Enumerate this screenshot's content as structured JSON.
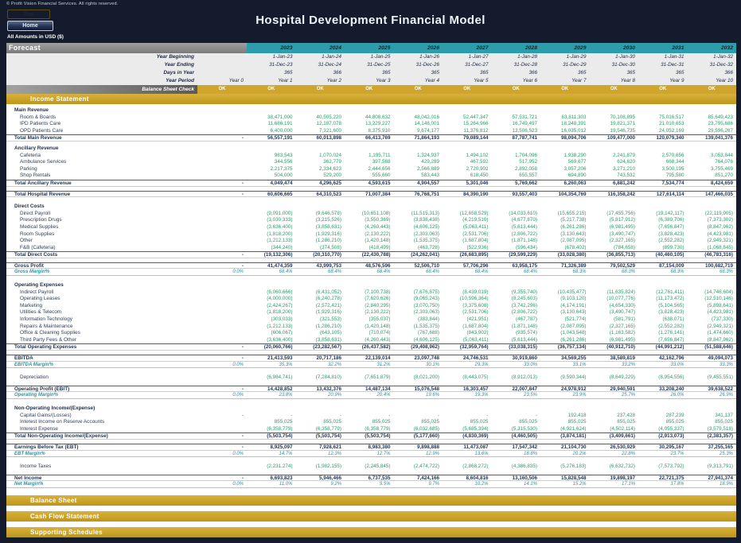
{
  "header": {
    "copyright": "© Profit Vision Financial Services. All rights reserved.",
    "title": "Hospital Development Financial Model",
    "top_button": "Top",
    "home_button": "Home",
    "amounts_note": "All Amounts in  USD ($)"
  },
  "forecast": {
    "label": "Forecast",
    "years": [
      "2023",
      "2024",
      "2025",
      "2026",
      "2027",
      "2028",
      "2029",
      "2030",
      "2031",
      "2032"
    ],
    "rows": [
      {
        "label": "Year Beginning",
        "y0": "",
        "v": [
          "1-Jan-23",
          "1-Jan-24",
          "1-Jan-25",
          "1-Jan-26",
          "1-Jan-27",
          "1-Jan-28",
          "1-Jan-29",
          "1-Jan-30",
          "1-Jan-31",
          "1-Jan-32"
        ]
      },
      {
        "label": "Year Ending",
        "y0": "",
        "v": [
          "31-Dec-23",
          "31-Dec-24",
          "31-Dec-25",
          "31-Dec-26",
          "31-Dec-27",
          "31-Dec-28",
          "31-Dec-29",
          "31-Dec-30",
          "31-Dec-31",
          "31-Dec-32"
        ]
      },
      {
        "label": "Days in Year",
        "y0": "",
        "v": [
          "365",
          "366",
          "365",
          "365",
          "365",
          "366",
          "365",
          "365",
          "365",
          "366"
        ]
      },
      {
        "label": "Year Period",
        "y0": "Year 0",
        "v": [
          "Year 1",
          "Year 2",
          "Year 3",
          "Year 4",
          "Year 5",
          "Year 6",
          "Year 7",
          "Year 8",
          "Year 9",
          "Year 10"
        ]
      }
    ],
    "check": {
      "label": "Balance Sheet Check",
      "values": [
        "OK",
        "OK",
        "OK",
        "OK",
        "OK",
        "OK",
        "OK",
        "OK",
        "OK",
        "OK",
        "OK"
      ]
    }
  },
  "sections": {
    "income_statement": "Income Statement",
    "balance_sheet": "Balance Sheet",
    "cash_flow": "Cash Flow Statement",
    "supporting": "Supporting Schedules"
  },
  "income_statement": {
    "rows": [
      {
        "t": "sp",
        "h": 4
      },
      {
        "t": "sec",
        "label": "Main Revenue"
      },
      {
        "t": "det",
        "label": "Room & Boards",
        "y0": "",
        "v": [
          "38,471,000",
          "40,505,220",
          "44,808,632",
          "48,042,016",
          "52,447,347",
          "57,531,721",
          "63,811,303",
          "70,108,895",
          "75,016,517",
          "85,649,423"
        ]
      },
      {
        "t": "det",
        "label": "IPD Patients Care",
        "y0": "",
        "v": [
          "11,686,191",
          "12,187,078",
          "13,229,227",
          "14,148,001",
          "15,264,966",
          "16,749,497",
          "18,248,391",
          "19,821,371",
          "21,010,653",
          "23,795,686"
        ]
      },
      {
        "t": "det",
        "label": "OPD Patients Care",
        "y0": "",
        "v": [
          "6,400,000",
          "7,321,600",
          "8,375,910",
          "9,674,177",
          "11,376,812",
          "13,506,523",
          "16,035,012",
          "19,546,735",
          "24,052,169",
          "29,596,267"
        ]
      },
      {
        "t": "tot",
        "label": "Total Main Revenue",
        "y0": "-",
        "v": [
          "56,557,191",
          "60,013,898",
          "66,413,769",
          "71,864,193",
          "79,089,144",
          "87,787,741",
          "98,094,706",
          "109,477,000",
          "120,079,340",
          "139,041,376"
        ]
      },
      {
        "t": "sp",
        "h": 5
      },
      {
        "t": "sec",
        "label": "Ancillary Revenue"
      },
      {
        "t": "det",
        "label": "Cafeteria",
        "y0": "",
        "v": [
          "983,543",
          "1,070,024",
          "1,195,711",
          "1,324,937",
          "1,494,102",
          "1,704,096",
          "1,938,290",
          "2,241,879",
          "2,570,656",
          "3,053,844"
        ]
      },
      {
        "t": "det",
        "label": "Ambulance Services",
        "y0": "",
        "v": [
          "344,556",
          "362,779",
          "397,588",
          "429,289",
          "467,592",
          "517,952",
          "569,677",
          "624,620",
          "668,344",
          "764,076"
        ]
      },
      {
        "t": "det",
        "label": "Parking",
        "y0": "",
        "v": [
          "2,217,375",
          "2,334,623",
          "2,444,656",
          "2,566,889",
          "2,720,902",
          "2,892,058",
          "3,057,206",
          "3,271,210",
          "3,500,195",
          "3,755,469"
        ]
      },
      {
        "t": "det",
        "label": "Shop Rentals",
        "y0": "",
        "v": [
          "504,000",
          "529,200",
          "555,660",
          "583,443",
          "618,450",
          "655,557",
          "694,890",
          "743,532",
          "795,580",
          "851,270"
        ]
      },
      {
        "t": "tot",
        "label": "Total Ancillary Revenue",
        "y0": "-",
        "v": [
          "4,049,474",
          "4,296,625",
          "4,593,615",
          "4,904,557",
          "5,301,046",
          "5,769,662",
          "6,260,063",
          "6,881,242",
          "7,534,774",
          "8,424,659"
        ]
      },
      {
        "t": "sp",
        "h": 5
      },
      {
        "t": "tot",
        "label": "Total Hospital Revenue",
        "y0": "-",
        "v": [
          "60,606,665",
          "64,310,523",
          "71,007,384",
          "76,768,751",
          "84,390,190",
          "93,557,403",
          "104,354,769",
          "116,358,242",
          "127,614,114",
          "147,466,035"
        ]
      },
      {
        "t": "sp",
        "h": 8
      },
      {
        "t": "sec",
        "label": "Direct Costs"
      },
      {
        "t": "det",
        "label": "Direct Payroll",
        "y0": "",
        "v": [
          "(9,091,000)",
          "(9,646,578)",
          "(10,651,108)",
          "(11,515,313)",
          "(12,658,529)",
          "(14,033,610)",
          "(15,655,215)",
          "(17,455,756)",
          "(19,142,117)",
          "(22,119,905)"
        ]
      },
      {
        "t": "det",
        "label": "Prescription Drugs",
        "y0": "",
        "v": [
          "(3,030,333)",
          "(3,215,526)",
          "(3,550,369)",
          "(3,838,438)",
          "(4,219,510)",
          "(4,677,870)",
          "(5,217,738)",
          "(5,817,912)",
          "(6,380,706)",
          "(7,373,302)"
        ]
      },
      {
        "t": "det",
        "label": "Medical Supplies",
        "y0": "",
        "v": [
          "(3,636,400)",
          "(3,858,631)",
          "(4,260,443)",
          "(4,606,125)",
          "(5,063,411)",
          "(5,613,444)",
          "(6,261,286)",
          "(6,981,495)",
          "(7,656,847)",
          "(8,847,962)"
        ]
      },
      {
        "t": "det",
        "label": "Room Supplies",
        "y0": "",
        "v": [
          "(1,818,200)",
          "(1,929,316)",
          "(2,130,222)",
          "(2,303,063)",
          "(2,531,706)",
          "(2,806,722)",
          "(3,130,643)",
          "(3,490,747)",
          "(3,828,423)",
          "(4,423,981)"
        ]
      },
      {
        "t": "det",
        "label": "Other",
        "y0": "",
        "v": [
          "(1,212,133)",
          "(1,286,210)",
          "(1,420,148)",
          "(1,535,375)",
          "(1,687,804)",
          "(1,871,148)",
          "(2,087,095)",
          "(2,327,165)",
          "(2,552,282)",
          "(2,949,321)"
        ]
      },
      {
        "t": "det",
        "label": "F&B (Cafeteria)",
        "y0": "",
        "v": [
          "(344,240)",
          "(374,508)",
          "(418,499)",
          "(463,728)",
          "(522,936)",
          "(596,434)",
          "(678,402)",
          "(784,658)",
          "(899,730)",
          "(1,068,845)"
        ]
      },
      {
        "t": "tot",
        "label": "Total Direct Costs",
        "y0": "-",
        "v": [
          "(19,132,306)",
          "(20,310,770)",
          "(22,430,788)",
          "(24,262,041)",
          "(26,683,895)",
          "(29,599,229)",
          "(33,028,380)",
          "(36,855,713)",
          "(40,460,105)",
          "(46,783,316)"
        ]
      },
      {
        "t": "sp",
        "h": 5
      },
      {
        "t": "tot",
        "label": "Gross Profit",
        "y0": "-",
        "v": [
          "41,474,359",
          "43,999,753",
          "48,576,596",
          "52,506,710",
          "57,706,296",
          "63,958,175",
          "71,326,389",
          "79,502,529",
          "87,154,009",
          "100,682,719"
        ]
      },
      {
        "t": "mar",
        "label": "Gross Margin%",
        "y0": "0.0%",
        "v": [
          "68.4%",
          "68.4%",
          "68.4%",
          "68.4%",
          "68.4%",
          "68.4%",
          "68.3%",
          "68.3%",
          "68.3%",
          "68.3%"
        ]
      },
      {
        "t": "sp",
        "h": 8
      },
      {
        "t": "sec",
        "label": "Operating Expenses"
      },
      {
        "t": "det",
        "label": "Indirect Payroll",
        "y0": "",
        "v": [
          "(6,060,666)",
          "(6,431,052)",
          "(7,100,738)",
          "(7,676,875)",
          "(8,439,019)",
          "(9,355,740)",
          "(10,435,477)",
          "(11,635,824)",
          "(12,761,411)",
          "(14,746,604)"
        ]
      },
      {
        "t": "det",
        "label": "Operating Leases",
        "y0": "",
        "v": [
          "(4,000,000)",
          "(6,240,278)",
          "(7,620,626)",
          "(9,065,243)",
          "(10,596,364)",
          "(8,245,603)",
          "(9,103,120)",
          "(10,077,776)",
          "(11,173,472)",
          "(12,510,146)"
        ]
      },
      {
        "t": "det",
        "label": "Marketing",
        "y0": "",
        "v": [
          "(2,424,267)",
          "(2,572,421)",
          "(2,840,295)",
          "(3,070,750)",
          "(3,375,608)",
          "(3,742,296)",
          "(4,174,191)",
          "(4,654,330)",
          "(5,104,565)",
          "(5,898,641)"
        ]
      },
      {
        "t": "det",
        "label": "Utilities & Telecom",
        "y0": "",
        "v": [
          "(1,818,200)",
          "(1,929,316)",
          "(2,130,222)",
          "(2,303,063)",
          "(2,531,706)",
          "(2,806,722)",
          "(3,130,643)",
          "(3,490,747)",
          "(3,828,423)",
          "(4,423,981)"
        ]
      },
      {
        "t": "det",
        "label": "Information Technology",
        "y0": "",
        "v": [
          "(303,033)",
          "(321,553)",
          "(355,037)",
          "(383,844)",
          "(421,951)",
          "(467,787)",
          "(521,774)",
          "(581,791)",
          "(638,071)",
          "(737,330)"
        ]
      },
      {
        "t": "det",
        "label": "Repairs & Maintenance",
        "y0": "",
        "v": [
          "(1,212,133)",
          "(1,286,210)",
          "(1,420,148)",
          "(1,535,375)",
          "(1,687,804)",
          "(1,871,148)",
          "(2,087,095)",
          "(2,327,165)",
          "(2,552,282)",
          "(2,949,321)"
        ]
      },
      {
        "t": "det",
        "label": "Office & Cleaning Supplies",
        "y0": "",
        "v": [
          "(606,067)",
          "(643,105)",
          "(710,074)",
          "(767,688)",
          "(843,902)",
          "(935,574)",
          "(1,043,548)",
          "(1,163,582)",
          "(1,276,141)",
          "(1,474,660)"
        ]
      },
      {
        "t": "det",
        "label": "Third Party Fees & Other",
        "y0": "",
        "v": [
          "(3,636,400)",
          "(3,858,631)",
          "(4,260,443)",
          "(4,606,125)",
          "(5,063,411)",
          "(5,613,444)",
          "(6,261,286)",
          "(6,981,495)",
          "(7,656,847)",
          "(8,847,962)"
        ]
      },
      {
        "t": "tot",
        "label": "Total Operating Expenses",
        "y0": "-",
        "v": [
          "(20,060,766)",
          "(23,282,567)",
          "(26,437,582)",
          "(29,408,962)",
          "(32,959,764)",
          "(33,038,315)",
          "(36,757,134)",
          "(40,912,710)",
          "(44,991,212)",
          "(51,588,646)"
        ]
      },
      {
        "t": "sp",
        "h": 5
      },
      {
        "t": "tot",
        "label": "EBITDA",
        "y0": "-",
        "v": [
          "21,413,593",
          "20,717,186",
          "22,139,014",
          "23,097,748",
          "24,746,531",
          "30,919,860",
          "34,569,255",
          "38,589,819",
          "42,162,796",
          "49,094,073"
        ]
      },
      {
        "t": "mar",
        "label": "EBITDA Margin%",
        "y0": "0.0%",
        "v": [
          "35.3%",
          "32.2%",
          "31.2%",
          "30.1%",
          "29.3%",
          "33.0%",
          "33.1%",
          "33.2%",
          "33.0%",
          "33.3%"
        ]
      },
      {
        "t": "sp",
        "h": 8
      },
      {
        "t": "det",
        "label": "Depreciation",
        "y0": "",
        "v": [
          "(6,984,741)",
          "(7,284,810)",
          "(7,651,879)",
          "(8,021,200)",
          "(8,443,075)",
          "(8,912,013)",
          "(9,590,344)",
          "(8,649,229)",
          "(8,954,556)",
          "(9,455,551)"
        ]
      },
      {
        "t": "sp",
        "h": 5
      },
      {
        "t": "tot",
        "label": "Operating Profit (EBIT)",
        "y0": "-",
        "v": [
          "14,428,852",
          "13,432,376",
          "14,487,134",
          "15,076,548",
          "16,303,457",
          "22,007,847",
          "24,978,912",
          "29,940,591",
          "33,208,240",
          "39,638,522"
        ]
      },
      {
        "t": "mar",
        "label": "Operating Margin%",
        "y0": "0.0%",
        "v": [
          "23.8%",
          "20.9%",
          "20.4%",
          "19.6%",
          "19.3%",
          "23.5%",
          "23.9%",
          "25.7%",
          "26.0%",
          "26.9%"
        ]
      },
      {
        "t": "sp",
        "h": 8
      },
      {
        "t": "sec",
        "label": "Non-Operating Income/(Expense)"
      },
      {
        "t": "det",
        "label": "Capital Gains/(Losses)",
        "y0": "-",
        "v": [
          "-",
          "-",
          "-",
          "-",
          "-",
          "-",
          "192,418",
          "237,428",
          "287,239",
          "341,137"
        ]
      },
      {
        "t": "det",
        "label": "Interest Income on Reserve Accounts",
        "y0": "",
        "v": [
          "855,025",
          "855,025",
          "855,025",
          "855,025",
          "855,025",
          "855,025",
          "855,025",
          "855,025",
          "855,025",
          "855,025"
        ]
      },
      {
        "t": "det",
        "label": "Interest Expense",
        "y0": "",
        "v": [
          "(6,358,779)",
          "(6,358,779)",
          "(6,358,779)",
          "(6,032,685)",
          "(5,685,394)",
          "(5,315,530)",
          "(4,921,624)",
          "(4,502,114)",
          "(4,055,337)",
          "(3,579,518)"
        ]
      },
      {
        "t": "tot",
        "label": "Total Non-Operating Income/(Expense)",
        "y0": "-",
        "v": [
          "(5,503,754)",
          "(5,503,754)",
          "(5,503,754)",
          "(5,177,660)",
          "(4,830,369)",
          "(4,460,505)",
          "(3,874,181)",
          "(3,409,661)",
          "(2,913,073)",
          "(2,383,357)"
        ]
      },
      {
        "t": "sp",
        "h": 5
      },
      {
        "t": "tot",
        "label": "Earnings Before Tax (EBT)",
        "y0": "-",
        "v": [
          "8,925,097",
          "7,928,621",
          "8,983,380",
          "9,898,888",
          "11,473,087",
          "17,547,342",
          "21,104,730",
          "26,530,929",
          "30,295,167",
          "37,255,165"
        ]
      },
      {
        "t": "mar",
        "label": "EBT Margin%",
        "y0": "0.0%",
        "v": [
          "14.7%",
          "12.3%",
          "12.7%",
          "12.9%",
          "13.6%",
          "18.8%",
          "20.2%",
          "22.8%",
          "23.7%",
          "25.3%"
        ]
      },
      {
        "t": "sp",
        "h": 8
      },
      {
        "t": "det",
        "label": "Income Taxes",
        "y0": "",
        "v": [
          "(2,231,274)",
          "(1,982,155)",
          "(2,245,845)",
          "(2,474,722)",
          "(2,868,272)",
          "(4,386,835)",
          "(5,276,183)",
          "(6,632,732)",
          "(7,573,792)",
          "(9,313,791)"
        ]
      },
      {
        "t": "sp",
        "h": 5
      },
      {
        "t": "tot",
        "label": "Net Income",
        "y0": "-",
        "v": [
          "6,693,823",
          "5,946,466",
          "6,737,535",
          "7,424,166",
          "8,604,816",
          "13,160,506",
          "15,828,548",
          "19,898,197",
          "22,721,375",
          "27,941,374"
        ]
      },
      {
        "t": "mar",
        "label": "Net Margin%",
        "y0": "0.0%",
        "v": [
          "11.0%",
          "9.2%",
          "9.5%",
          "9.7%",
          "10.2%",
          "14.1%",
          "15.2%",
          "17.1%",
          "17.8%",
          "18.9%"
        ]
      }
    ]
  }
}
